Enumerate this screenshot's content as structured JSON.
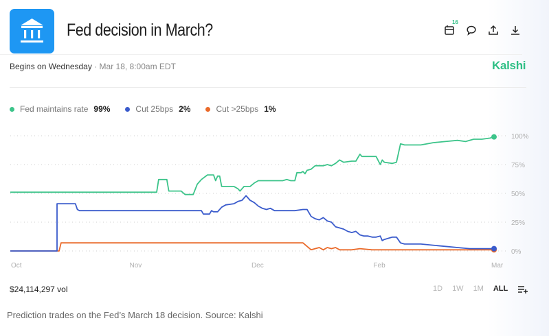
{
  "header": {
    "title": "Fed decision in March?",
    "begins_label": "Begins on Wednesday",
    "begins_date": "· Mar 18, 8:00am EDT",
    "brand": "Kalshi",
    "icons": [
      "calendar-icon",
      "comment-icon",
      "share-icon",
      "download-icon"
    ],
    "calendar_badge": "16"
  },
  "footer": {
    "volume": "$24,114,297 vol",
    "ranges": [
      "1D",
      "1W",
      "1M",
      "ALL"
    ],
    "active_range": "ALL",
    "caption": "Prediction trades on the Fed’s March 18 decision. Source: Kalshi"
  },
  "colors": {
    "green": "#3cc48a",
    "blue": "#3a5bcc",
    "orange": "#ea6a2a",
    "logo": "#1e97f3"
  },
  "chart_data": {
    "type": "line",
    "title": "Fed decision in March?",
    "xlabel": "",
    "ylabel": "",
    "x_unit": "days since Oct 1",
    "xlim": [
      0,
      120
    ],
    "ylim": [
      0,
      100
    ],
    "x_ticks": [
      {
        "label": "Oct",
        "x": 0
      },
      {
        "label": "Nov",
        "x": 30
      },
      {
        "label": "Dec",
        "x": 60
      },
      {
        "label": "Feb",
        "x": 90
      },
      {
        "label": "Mar",
        "x": 119
      }
    ],
    "y_ticks": [
      {
        "label": "100%",
        "y": 100
      },
      {
        "label": "75%",
        "y": 75
      },
      {
        "label": "50%",
        "y": 50
      },
      {
        "label": "25%",
        "y": 25
      },
      {
        "label": "0%",
        "y": 0
      }
    ],
    "grid": true,
    "legend_position": "top-left",
    "series": [
      {
        "name": "Fed maintains rate",
        "color": "#3cc48a",
        "last_value": "99%",
        "points": [
          [
            0,
            51
          ],
          [
            36,
            51
          ],
          [
            36.5,
            62
          ],
          [
            38.5,
            62
          ],
          [
            39,
            52
          ],
          [
            42,
            52
          ],
          [
            43,
            49
          ],
          [
            45,
            49
          ],
          [
            46,
            58
          ],
          [
            47,
            62
          ],
          [
            48.5,
            66
          ],
          [
            50,
            66
          ],
          [
            50.5,
            61
          ],
          [
            51,
            65
          ],
          [
            51.5,
            65
          ],
          [
            52,
            56
          ],
          [
            55,
            56
          ],
          [
            56,
            54
          ],
          [
            56.5,
            52
          ],
          [
            57,
            54
          ],
          [
            57.5,
            56
          ],
          [
            59,
            56
          ],
          [
            60,
            59
          ],
          [
            61,
            61
          ],
          [
            64,
            61
          ],
          [
            67,
            61
          ],
          [
            68,
            62
          ],
          [
            69,
            61
          ],
          [
            70,
            61
          ],
          [
            70.5,
            68
          ],
          [
            71.5,
            68
          ],
          [
            72,
            69
          ],
          [
            72.5,
            67
          ],
          [
            73,
            70
          ],
          [
            74,
            71
          ],
          [
            75,
            74
          ],
          [
            77,
            74
          ],
          [
            78,
            75
          ],
          [
            79,
            74
          ],
          [
            80,
            76
          ],
          [
            81,
            79
          ],
          [
            82,
            77
          ],
          [
            84,
            78
          ],
          [
            85,
            78
          ],
          [
            86,
            84
          ],
          [
            86.5,
            82
          ],
          [
            88,
            82
          ],
          [
            90,
            82
          ],
          [
            91,
            75
          ],
          [
            91.5,
            79
          ],
          [
            92,
            77
          ],
          [
            94,
            76
          ],
          [
            95,
            77
          ],
          [
            96,
            93
          ],
          [
            97,
            92
          ],
          [
            99,
            92
          ],
          [
            100,
            92
          ],
          [
            101,
            92
          ],
          [
            104,
            94
          ],
          [
            107,
            95
          ],
          [
            110,
            96
          ],
          [
            112,
            95
          ],
          [
            114,
            97
          ],
          [
            116,
            97
          ],
          [
            118,
            98
          ],
          [
            119,
            99
          ]
        ]
      },
      {
        "name": "Cut 25bps",
        "color": "#3a5bcc",
        "last_value": "2%",
        "points": [
          [
            0,
            0
          ],
          [
            11.5,
            0
          ],
          [
            11.5,
            41
          ],
          [
            16,
            41
          ],
          [
            16.5,
            36
          ],
          [
            17,
            35
          ],
          [
            47,
            35
          ],
          [
            47.5,
            32
          ],
          [
            49,
            32
          ],
          [
            49.5,
            35
          ],
          [
            50,
            34
          ],
          [
            51,
            34
          ],
          [
            52,
            38
          ],
          [
            53,
            40
          ],
          [
            55,
            41
          ],
          [
            56,
            43
          ],
          [
            57,
            44
          ],
          [
            58,
            48
          ],
          [
            59,
            44
          ],
          [
            60,
            42
          ],
          [
            61,
            39
          ],
          [
            62,
            37
          ],
          [
            63,
            36
          ],
          [
            64,
            37
          ],
          [
            65,
            35
          ],
          [
            70,
            35
          ],
          [
            72,
            36
          ],
          [
            73,
            36
          ],
          [
            74,
            30
          ],
          [
            75,
            28
          ],
          [
            76,
            27
          ],
          [
            77,
            29
          ],
          [
            78,
            26
          ],
          [
            79,
            25
          ],
          [
            80,
            21
          ],
          [
            81,
            20
          ],
          [
            82,
            19
          ],
          [
            83,
            17
          ],
          [
            84,
            16
          ],
          [
            85,
            17
          ],
          [
            86,
            14
          ],
          [
            87,
            13
          ],
          [
            88,
            13
          ],
          [
            89,
            12
          ],
          [
            90,
            12
          ],
          [
            91,
            13
          ],
          [
            91.5,
            9
          ],
          [
            92,
            10
          ],
          [
            93,
            11
          ],
          [
            94,
            12
          ],
          [
            95,
            12
          ],
          [
            96,
            7
          ],
          [
            97,
            6
          ],
          [
            101,
            6
          ],
          [
            104,
            5
          ],
          [
            107,
            4
          ],
          [
            110,
            3
          ],
          [
            113,
            2
          ],
          [
            116,
            2
          ],
          [
            119,
            2
          ]
        ]
      },
      {
        "name": "Cut >25bps",
        "color": "#ea6a2a",
        "last_value": "1%",
        "points": [
          [
            0,
            0
          ],
          [
            12,
            0
          ],
          [
            12.5,
            7
          ],
          [
            70,
            7
          ],
          [
            72,
            7
          ],
          [
            73,
            4
          ],
          [
            74,
            1
          ],
          [
            76,
            3
          ],
          [
            77,
            1
          ],
          [
            78,
            3
          ],
          [
            79,
            2
          ],
          [
            80,
            3
          ],
          [
            81,
            1
          ],
          [
            84,
            1
          ],
          [
            86,
            2
          ],
          [
            89,
            1
          ],
          [
            96,
            1
          ],
          [
            100,
            1
          ],
          [
            106,
            1
          ],
          [
            119,
            1
          ]
        ]
      }
    ]
  }
}
